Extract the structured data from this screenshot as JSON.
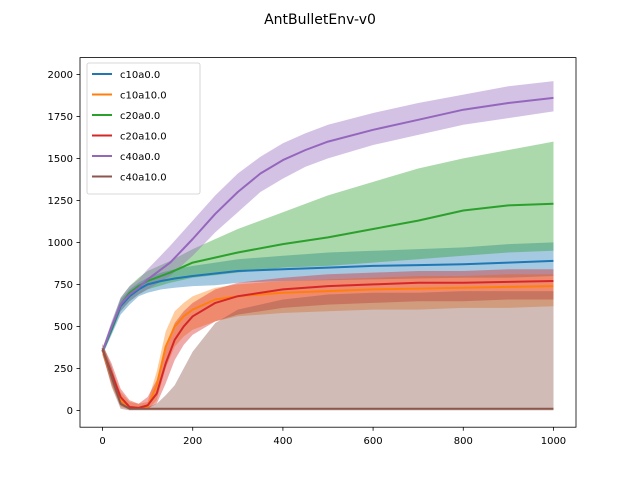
{
  "chart_data": {
    "type": "line",
    "title": "AntBulletEnv-v0",
    "xlabel": "",
    "ylabel": "",
    "xlim": [
      -50,
      1050
    ],
    "ylim": [
      -100,
      2100
    ],
    "xticks": [
      0,
      200,
      400,
      600,
      800,
      1000
    ],
    "yticks": [
      0,
      250,
      500,
      750,
      1000,
      1250,
      1500,
      1750,
      2000
    ],
    "grid": false,
    "legend": {
      "placement": "top-left"
    },
    "series": [
      {
        "name": "c10a0.0",
        "color": "#1f77b4",
        "x": [
          0,
          20,
          40,
          60,
          80,
          100,
          130,
          160,
          200,
          250,
          300,
          400,
          500,
          600,
          700,
          800,
          900,
          1000
        ],
        "mean": [
          350,
          480,
          620,
          680,
          720,
          750,
          770,
          785,
          800,
          815,
          830,
          840,
          850,
          860,
          865,
          870,
          880,
          890
        ],
        "lower": [
          330,
          450,
          570,
          630,
          680,
          700,
          720,
          730,
          740,
          745,
          760,
          770,
          775,
          780,
          785,
          790,
          790,
          800
        ],
        "upper": [
          370,
          510,
          660,
          720,
          760,
          790,
          820,
          840,
          860,
          880,
          900,
          920,
          940,
          950,
          960,
          970,
          990,
          1000
        ]
      },
      {
        "name": "c10a10.0",
        "color": "#ff7f0e",
        "x": [
          0,
          20,
          40,
          60,
          80,
          100,
          120,
          140,
          160,
          180,
          200,
          250,
          300,
          400,
          500,
          600,
          700,
          800,
          900,
          1000
        ],
        "mean": [
          360,
          200,
          60,
          20,
          15,
          20,
          150,
          380,
          500,
          560,
          600,
          660,
          680,
          700,
          710,
          720,
          725,
          730,
          735,
          740
        ],
        "lower": [
          330,
          150,
          20,
          5,
          5,
          5,
          60,
          250,
          380,
          440,
          480,
          530,
          560,
          580,
          590,
          600,
          600,
          610,
          610,
          620
        ],
        "upper": [
          390,
          250,
          110,
          50,
          40,
          50,
          230,
          470,
          590,
          640,
          680,
          730,
          750,
          770,
          780,
          790,
          800,
          800,
          810,
          810
        ]
      },
      {
        "name": "c20a0.0",
        "color": "#2ca02c",
        "x": [
          0,
          20,
          40,
          60,
          80,
          100,
          150,
          200,
          300,
          400,
          500,
          600,
          700,
          800,
          900,
          1000
        ],
        "mean": [
          350,
          490,
          630,
          700,
          740,
          770,
          820,
          880,
          940,
          990,
          1030,
          1080,
          1130,
          1190,
          1220,
          1230
        ],
        "lower": [
          330,
          460,
          590,
          650,
          690,
          720,
          760,
          790,
          820,
          850,
          860,
          880,
          900,
          920,
          940,
          950
        ],
        "upper": [
          370,
          520,
          670,
          740,
          790,
          830,
          890,
          960,
          1080,
          1180,
          1280,
          1360,
          1440,
          1500,
          1550,
          1600
        ]
      },
      {
        "name": "c20a10.0",
        "color": "#d62728",
        "x": [
          0,
          20,
          40,
          60,
          80,
          100,
          120,
          140,
          160,
          180,
          200,
          250,
          300,
          400,
          500,
          600,
          700,
          800,
          900,
          1000
        ],
        "mean": [
          360,
          220,
          80,
          20,
          15,
          30,
          100,
          280,
          420,
          500,
          560,
          640,
          680,
          720,
          740,
          750,
          760,
          760,
          765,
          770
        ],
        "lower": [
          330,
          160,
          30,
          5,
          5,
          10,
          40,
          160,
          300,
          390,
          450,
          530,
          570,
          610,
          630,
          640,
          650,
          650,
          660,
          660
        ],
        "upper": [
          390,
          280,
          130,
          60,
          40,
          80,
          180,
          380,
          520,
          590,
          640,
          720,
          760,
          790,
          810,
          820,
          830,
          830,
          840,
          840
        ]
      },
      {
        "name": "c40a0.0",
        "color": "#9467bd",
        "x": [
          0,
          20,
          40,
          60,
          80,
          100,
          150,
          200,
          250,
          300,
          350,
          400,
          450,
          500,
          600,
          700,
          800,
          900,
          1000
        ],
        "mean": [
          350,
          500,
          630,
          690,
          730,
          780,
          880,
          1020,
          1170,
          1300,
          1410,
          1490,
          1550,
          1600,
          1670,
          1730,
          1790,
          1830,
          1860
        ],
        "lower": [
          330,
          470,
          590,
          650,
          690,
          720,
          800,
          920,
          1060,
          1180,
          1300,
          1380,
          1450,
          1500,
          1580,
          1640,
          1700,
          1740,
          1780
        ],
        "upper": [
          370,
          530,
          670,
          740,
          780,
          840,
          980,
          1130,
          1280,
          1410,
          1510,
          1590,
          1650,
          1700,
          1770,
          1830,
          1880,
          1930,
          1960
        ]
      },
      {
        "name": "c40a10.0",
        "color": "#8c564b",
        "x": [
          0,
          20,
          40,
          60,
          80,
          100,
          120,
          140,
          160,
          200,
          250,
          300,
          400,
          500,
          600,
          700,
          800,
          900,
          1000
        ],
        "mean": [
          370,
          200,
          40,
          10,
          10,
          10,
          10,
          10,
          10,
          10,
          10,
          10,
          10,
          10,
          10,
          10,
          10,
          10,
          10
        ],
        "lower": [
          340,
          140,
          10,
          0,
          0,
          0,
          0,
          0,
          0,
          0,
          0,
          0,
          0,
          0,
          0,
          0,
          0,
          0,
          0
        ],
        "upper": [
          400,
          260,
          80,
          20,
          20,
          20,
          40,
          90,
          150,
          350,
          520,
          600,
          660,
          690,
          700,
          700,
          710,
          710,
          710
        ]
      }
    ]
  }
}
